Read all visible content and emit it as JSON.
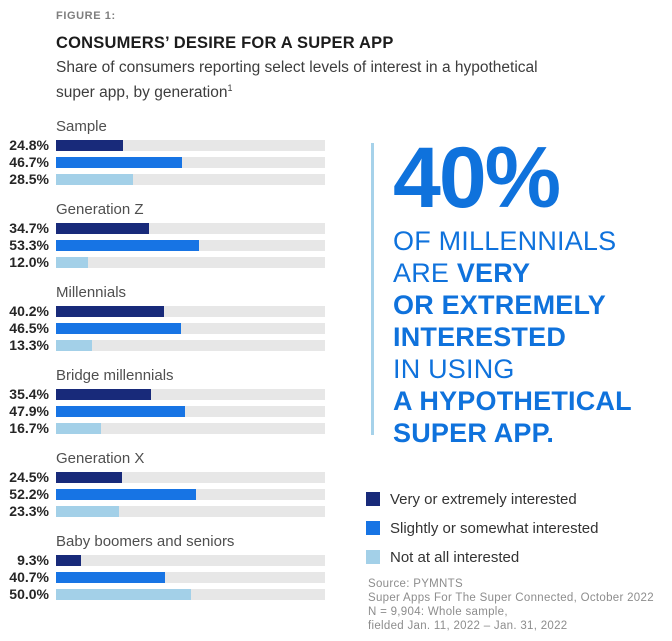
{
  "header": {
    "figure_label": "FIGURE 1:",
    "title": "CONSUMERS’ DESIRE FOR A SUPER APP",
    "subtitle_line1": "Share of consumers reporting select levels of interest in a hypothetical",
    "subtitle_line2": "super app, by generation",
    "subtitle_superscript": "1"
  },
  "chart_data": {
    "type": "bar",
    "orientation": "horizontal",
    "categories": [
      "Sample",
      "Generation Z",
      "Millennials",
      "Bridge millennials",
      "Generation X",
      "Baby boomers and seniors"
    ],
    "series": [
      {
        "name": "Very or extremely interested",
        "color": "#182A7A",
        "values": [
          24.8,
          34.7,
          40.2,
          35.4,
          24.5,
          9.3
        ]
      },
      {
        "name": "Slightly or somewhat interested",
        "color": "#1774E4",
        "values": [
          46.7,
          53.3,
          46.5,
          47.9,
          52.2,
          40.7
        ]
      },
      {
        "name": "Not at all interested",
        "color": "#A3D0E8",
        "values": [
          28.5,
          12.0,
          13.3,
          16.7,
          23.3,
          50.0
        ]
      }
    ],
    "value_labels": [
      [
        "24.8%",
        "46.7%",
        "28.5%"
      ],
      [
        "34.7%",
        "53.3%",
        "12.0%"
      ],
      [
        "40.2%",
        "46.5%",
        "13.3%"
      ],
      [
        "35.4%",
        "47.9%",
        "16.7%"
      ],
      [
        "24.5%",
        "52.2%",
        "23.3%"
      ],
      [
        "9.3%",
        "40.7%",
        "50.0%"
      ]
    ],
    "xlim": [
      0,
      100
    ],
    "grid": false,
    "legend_position": "bottom-right"
  },
  "callout": {
    "stat": "40%",
    "line1": "OF MILLENNIALS",
    "line2_regular": "ARE ",
    "line2_bold": "VERY",
    "line3": "OR EXTREMELY",
    "line4": "INTERESTED",
    "line5": "IN USING",
    "line6": "A HYPOTHETICAL",
    "line7": "SUPER APP."
  },
  "source": {
    "lines": [
      "Source: PYMNTS",
      "Super Apps For The Super Connected, October 2022",
      "N = 9,904: Whole sample,",
      "fielded Jan. 11, 2022 – Jan. 31, 2022"
    ]
  },
  "colors": {
    "navy": "#182A7A",
    "bright_blue": "#1774E4",
    "light_blue": "#A3D0E8",
    "callout_blue": "#0F72DC",
    "track_gray": "#E7E7E7",
    "accent_line": "#A6D2EA"
  }
}
